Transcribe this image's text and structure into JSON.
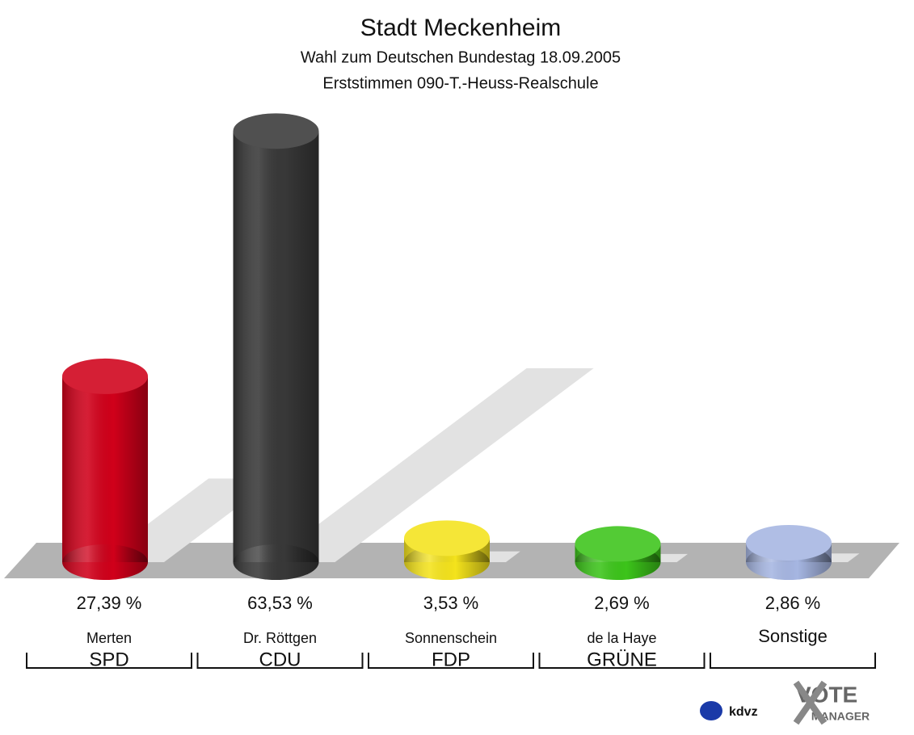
{
  "chart_data": {
    "type": "bar",
    "title": "Stadt Meckenheim",
    "subtitle": [
      "Wahl zum Deutschen Bundestag 18.09.2005",
      "Erststimmen 090-T.-Heuss-Realschule"
    ],
    "categories": [
      "Merten",
      "Dr. Röttgen",
      "Sonnenschein",
      "de la Haye",
      "Sonstige"
    ],
    "parties": [
      "SPD",
      "CDU",
      "FDP",
      "GRÜNE",
      null
    ],
    "values": [
      27.39,
      63.53,
      3.53,
      2.69,
      2.86
    ],
    "value_labels": [
      "27,39 %",
      "63,53 %",
      "3,53 %",
      "2,69 %",
      "2,86 %"
    ],
    "colors": [
      "#d0001a",
      "#383838",
      "#f4e31c",
      "#3cc41a",
      "#a6b6e2"
    ],
    "logo": {
      "left": "kdvz",
      "right": [
        "VOTE",
        "MANAGER"
      ]
    }
  }
}
